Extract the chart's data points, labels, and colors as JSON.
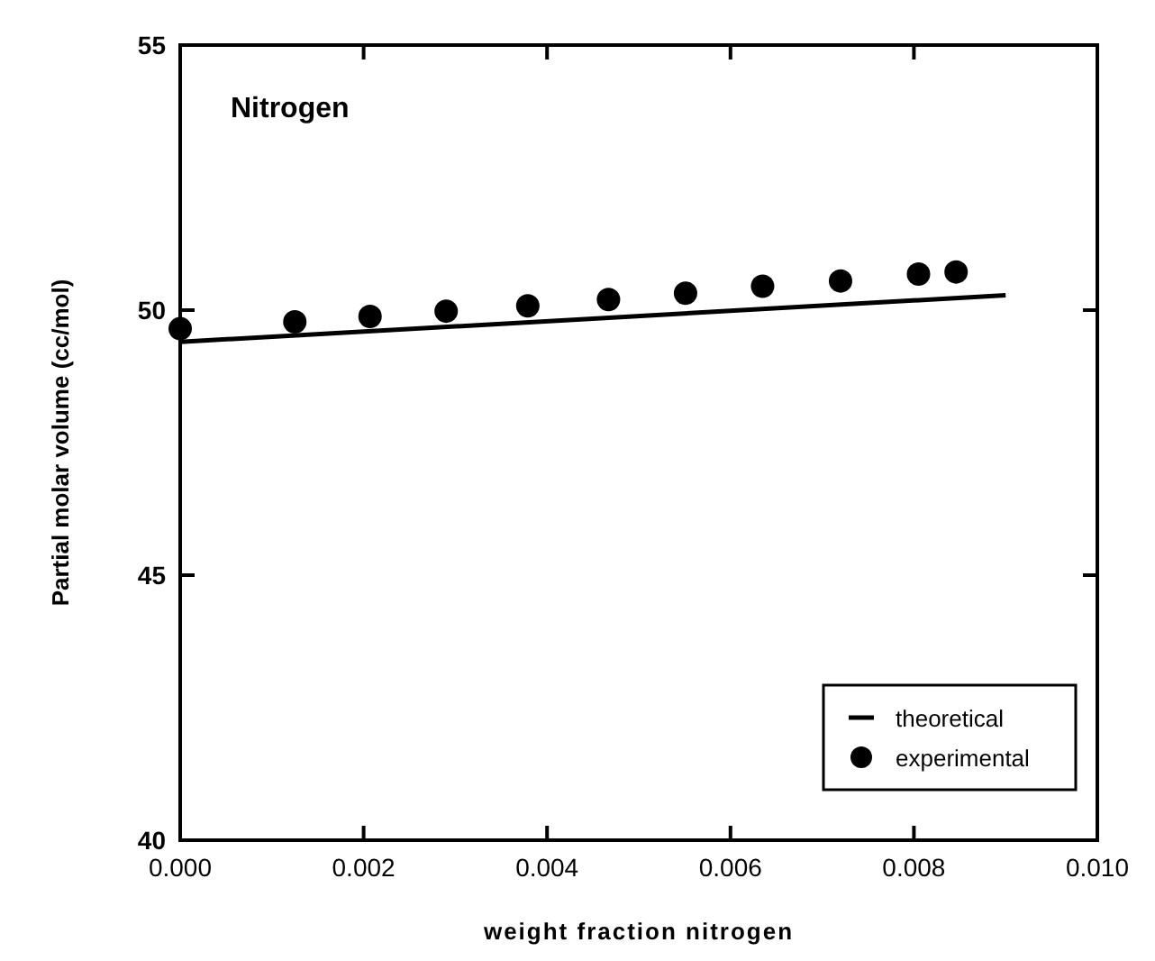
{
  "chart_data": {
    "type": "scatter",
    "xlabel": "weight fraction nitrogen",
    "ylabel": "Partial molar volume (cc/mol)",
    "annotations": [
      "Nitrogen"
    ],
    "xlim": [
      0,
      0.01
    ],
    "xticks": [
      {
        "value": 0,
        "label": "0.000"
      },
      {
        "value": 0.002,
        "label": "0.002"
      },
      {
        "value": 0.004,
        "label": "0.004"
      },
      {
        "value": 0.006,
        "label": "0.006"
      },
      {
        "value": 0.008,
        "label": "0.008"
      },
      {
        "value": 0.01,
        "label": "0.010"
      }
    ],
    "ylim": [
      40,
      55
    ],
    "yticks": [
      40,
      45,
      50,
      55
    ],
    "grid": false,
    "legend": "bottom right",
    "series": [
      {
        "name": "theoretical",
        "type": "line",
        "color": "#000000",
        "marker": "none",
        "line_style": "solid",
        "x": [
          0,
          0.009
        ],
        "values": [
          49.4,
          50.28
        ]
      },
      {
        "name": "experimental",
        "type": "scatter",
        "color": "#000000",
        "marker": "circle",
        "x": [
          0,
          0.00125,
          0.00207,
          0.0029,
          0.00379,
          0.00467,
          0.00551,
          0.00635,
          0.0072,
          0.00805,
          0.00846
        ],
        "values": [
          49.65,
          49.78,
          49.88,
          49.98,
          50.08,
          50.2,
          50.32,
          50.45,
          50.55,
          50.68,
          50.72
        ]
      }
    ]
  }
}
